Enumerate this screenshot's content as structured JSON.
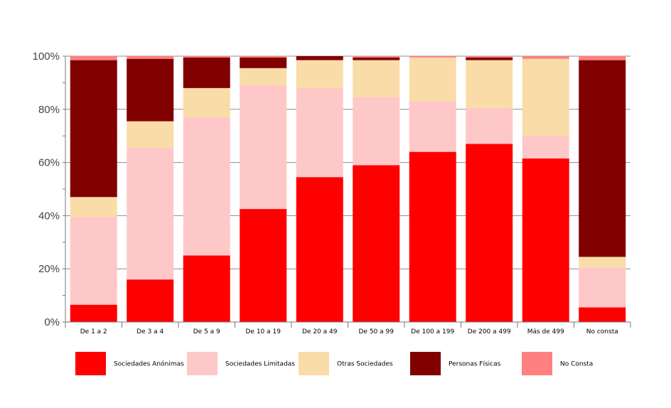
{
  "chart_data": {
    "type": "bar",
    "stacked": true,
    "normalized": true,
    "categories": [
      "De 1 a 2",
      "De 3 a 4",
      "De 5 a 9",
      "De 10 a 19",
      "De 20 a 49",
      "De 50 a 99",
      "De 100 a 199",
      "De 200 a 499",
      "Más de 499",
      "No consta"
    ],
    "series": [
      {
        "name": "Sociedades Anónimas",
        "color": "#ff0000",
        "values": [
          6.5,
          16,
          25,
          42.5,
          54.5,
          59,
          64,
          67,
          61.5,
          5.5
        ]
      },
      {
        "name": "Sociedades Limitadas",
        "color": "#ffc8c8",
        "values": [
          33,
          49.5,
          52,
          46.5,
          33.5,
          25.5,
          19,
          13.5,
          8.5,
          15
        ]
      },
      {
        "name": "Otras Sociedades",
        "color": "#fadca8",
        "values": [
          7.5,
          10,
          11,
          6.5,
          10.5,
          14,
          16.5,
          18,
          29,
          4
        ]
      },
      {
        "name": "Personas Físicas",
        "color": "#800000",
        "values": [
          51.5,
          23.5,
          11.5,
          4,
          1.5,
          1,
          0,
          1,
          0,
          74
        ]
      },
      {
        "name": "No Consta",
        "color": "#ff8080",
        "values": [
          1.5,
          1,
          0.5,
          0.5,
          0,
          0.5,
          0.5,
          0.5,
          1,
          1.5
        ]
      }
    ],
    "ylim": [
      0,
      100
    ],
    "yticks": [
      "0%",
      "20%",
      "40%",
      "60%",
      "80%",
      "100%"
    ],
    "grid": true,
    "legend_position": "bottom"
  }
}
